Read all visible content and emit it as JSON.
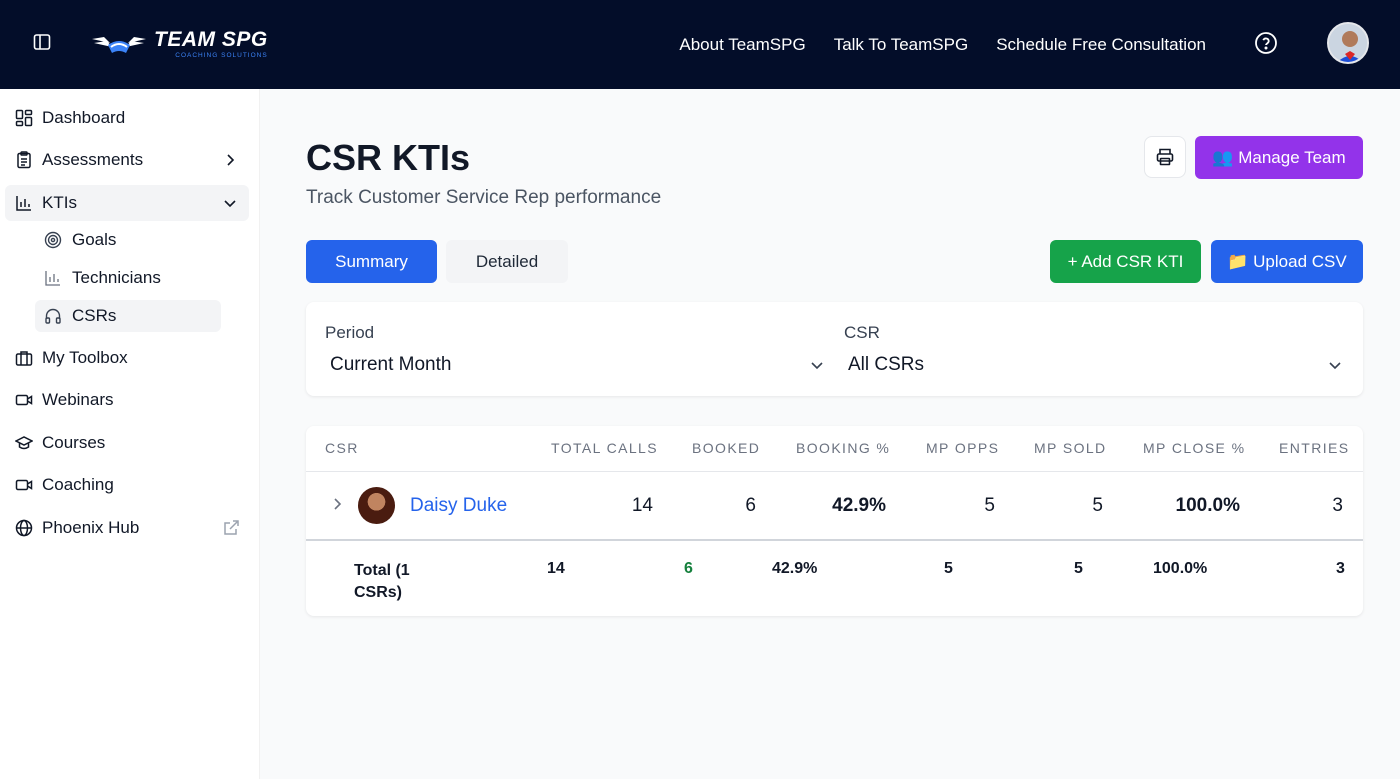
{
  "header": {
    "logo_main": "TEAM SPG",
    "logo_sub": "COACHING SOLUTIONS",
    "links": [
      "About TeamSPG",
      "Talk To TeamSPG",
      "Schedule Free Consultation"
    ]
  },
  "sidebar": {
    "items": [
      {
        "label": "Dashboard",
        "icon": "dashboard-icon"
      },
      {
        "label": "Assessments",
        "icon": "clipboard-icon"
      },
      {
        "label": "KTIs",
        "icon": "bar-chart-icon"
      },
      {
        "label": "My Toolbox",
        "icon": "briefcase-icon"
      },
      {
        "label": "Webinars",
        "icon": "video-icon"
      },
      {
        "label": "Courses",
        "icon": "graduation-cap-icon"
      },
      {
        "label": "Coaching",
        "icon": "video-icon"
      },
      {
        "label": "Phoenix Hub",
        "icon": "globe-icon"
      }
    ],
    "sub_items": [
      {
        "label": "Goals",
        "icon": "target-icon"
      },
      {
        "label": "Technicians",
        "icon": "bar-chart-icon"
      },
      {
        "label": "CSRs",
        "icon": "headphones-icon"
      }
    ]
  },
  "page": {
    "title": "CSR KTIs",
    "subtitle": "Track Customer Service Rep performance",
    "manage_team": "👥 Manage Team",
    "tabs": [
      "Summary",
      "Detailed"
    ],
    "add_button": "+ Add CSR KTI",
    "upload_button": "📁 Upload CSV"
  },
  "filters": {
    "period_label": "Period",
    "period_value": "Current Month",
    "csr_label": "CSR",
    "csr_value": "All CSRs"
  },
  "table": {
    "columns": [
      "CSR",
      "Total Calls",
      "Booked",
      "Booking %",
      "MP Opps",
      "MP Sold",
      "MP Close %",
      "Entries"
    ],
    "rows": [
      {
        "name": "Daisy Duke",
        "total_calls": "14",
        "booked": "6",
        "booking_pct": "42.9%",
        "mp_opps": "5",
        "mp_sold": "5",
        "mp_close_pct": "100.0%",
        "entries": "3"
      }
    ],
    "total": {
      "label": "Total (1 CSRs)",
      "label_line1": "Total (1",
      "label_line2": "CSRs)",
      "total_calls": "14",
      "booked": "6",
      "booking_pct": "42.9%",
      "mp_opps": "5",
      "mp_sold": "5",
      "mp_close_pct": "100.0%",
      "entries": "3"
    }
  },
  "colors": {
    "topbar": "#030d29",
    "primary": "#2563eb",
    "purple": "#9333ea",
    "green": "#16a34a",
    "booked_total": "#15803d"
  }
}
